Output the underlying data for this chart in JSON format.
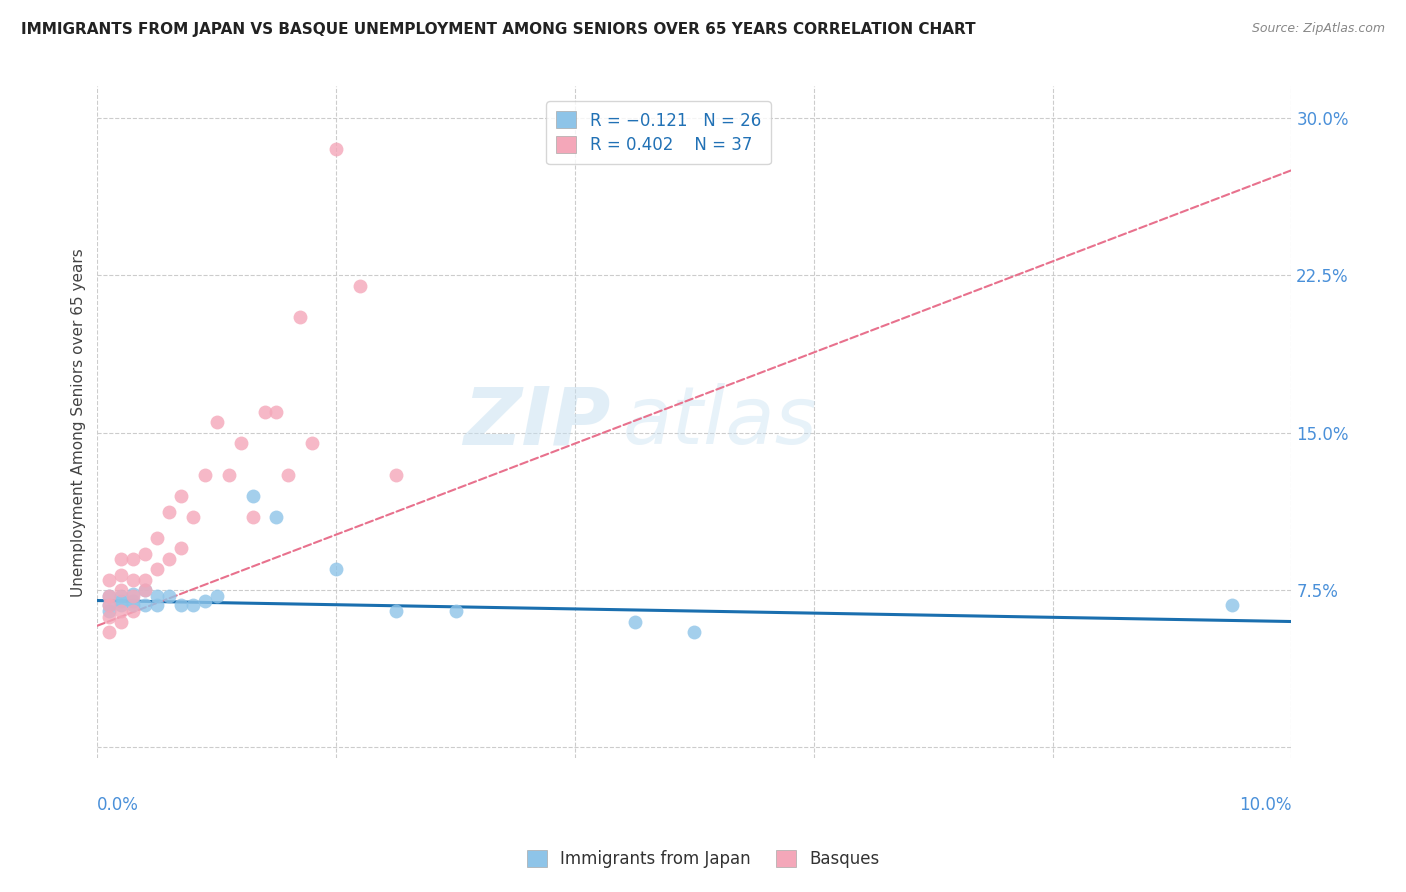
{
  "title": "IMMIGRANTS FROM JAPAN VS BASQUE UNEMPLOYMENT AMONG SENIORS OVER 65 YEARS CORRELATION CHART",
  "source": "Source: ZipAtlas.com",
  "ylabel": "Unemployment Among Seniors over 65 years",
  "ytick_vals": [
    0.0,
    0.075,
    0.15,
    0.225,
    0.3
  ],
  "ytick_labels": [
    "",
    "7.5%",
    "15.0%",
    "22.5%",
    "30.0%"
  ],
  "xlim": [
    0.0,
    0.1
  ],
  "ylim": [
    -0.005,
    0.315
  ],
  "legend_label1": "Immigrants from Japan",
  "legend_label2": "Basques",
  "blue_scatter": "#8ec4e8",
  "pink_scatter": "#f4a7b9",
  "blue_line": "#1a6faf",
  "pink_line": "#e8718d",
  "watermark_color": "#c5dff0",
  "japan_x": [
    0.001,
    0.001,
    0.001,
    0.002,
    0.002,
    0.002,
    0.003,
    0.003,
    0.003,
    0.004,
    0.004,
    0.005,
    0.005,
    0.006,
    0.007,
    0.008,
    0.009,
    0.01,
    0.013,
    0.015,
    0.02,
    0.025,
    0.03,
    0.045,
    0.05,
    0.095
  ],
  "japan_y": [
    0.068,
    0.072,
    0.065,
    0.068,
    0.07,
    0.072,
    0.068,
    0.073,
    0.07,
    0.068,
    0.075,
    0.068,
    0.072,
    0.072,
    0.068,
    0.068,
    0.07,
    0.072,
    0.12,
    0.11,
    0.085,
    0.065,
    0.065,
    0.06,
    0.055,
    0.068
  ],
  "basque_x": [
    0.001,
    0.001,
    0.001,
    0.001,
    0.001,
    0.002,
    0.002,
    0.002,
    0.002,
    0.002,
    0.003,
    0.003,
    0.003,
    0.003,
    0.004,
    0.004,
    0.004,
    0.005,
    0.005,
    0.006,
    0.006,
    0.007,
    0.007,
    0.008,
    0.009,
    0.01,
    0.011,
    0.012,
    0.013,
    0.014,
    0.015,
    0.016,
    0.017,
    0.018,
    0.02,
    0.022,
    0.025
  ],
  "basque_y": [
    0.055,
    0.062,
    0.068,
    0.072,
    0.08,
    0.06,
    0.065,
    0.075,
    0.082,
    0.09,
    0.065,
    0.072,
    0.08,
    0.09,
    0.075,
    0.08,
    0.092,
    0.085,
    0.1,
    0.09,
    0.112,
    0.095,
    0.12,
    0.11,
    0.13,
    0.155,
    0.13,
    0.145,
    0.11,
    0.16,
    0.16,
    0.13,
    0.205,
    0.145,
    0.285,
    0.22,
    0.13
  ],
  "marker_size": 100,
  "pink_line_x0": 0.0,
  "pink_line_y0": 0.058,
  "pink_line_x1": 0.1,
  "pink_line_y1": 0.275,
  "blue_line_x0": 0.0,
  "blue_line_y0": 0.07,
  "blue_line_x1": 0.1,
  "blue_line_y1": 0.06
}
